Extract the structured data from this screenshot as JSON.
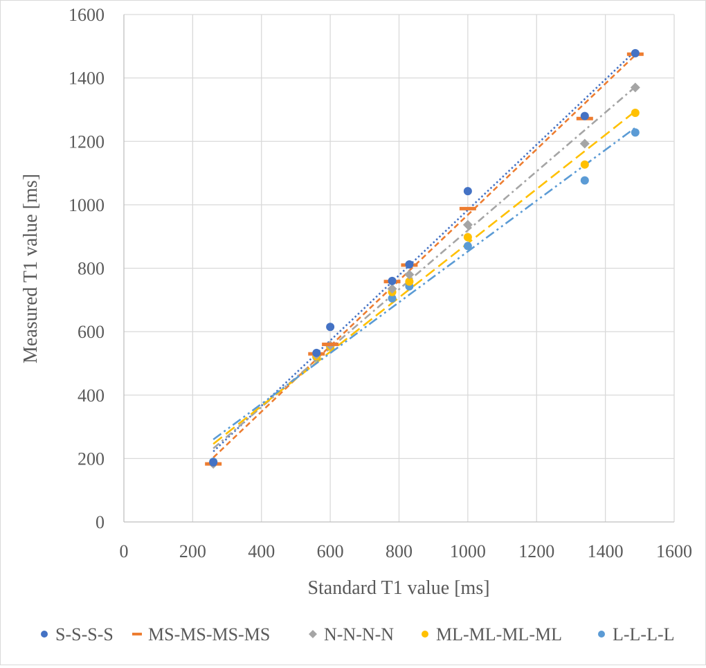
{
  "chart_data": {
    "type": "scatter",
    "title": "",
    "xlabel": "Standard T1 value [ms]",
    "ylabel": "Measured T1 value [ms]",
    "xlim": [
      0,
      1600
    ],
    "ylim": [
      0,
      1600
    ],
    "xticks": [
      0,
      200,
      400,
      600,
      800,
      1000,
      1200,
      1400,
      1600
    ],
    "yticks": [
      0,
      200,
      400,
      600,
      800,
      1000,
      1200,
      1400,
      1600
    ],
    "grid": true,
    "legend_position": "bottom",
    "x": [
      260,
      560,
      600,
      780,
      830,
      1000,
      1340,
      1487
    ],
    "series": [
      {
        "name": "S-S-S-S",
        "marker": "circle",
        "color": "#4472C4",
        "trendline_dash": "dotted",
        "values": [
          188,
          533,
          615,
          760,
          812,
          1043,
          1280,
          1478
        ],
        "trend": [
          [
            260,
            222
          ],
          [
            1487,
            1485
          ]
        ]
      },
      {
        "name": "MS-MS-MS-MS",
        "marker": "dash",
        "color": "#ED7D31",
        "trendline_dash": "dashed",
        "values": [
          183,
          530,
          560,
          758,
          810,
          988,
          1272,
          1475
        ],
        "trend": [
          [
            260,
            203
          ],
          [
            1487,
            1472
          ]
        ]
      },
      {
        "name": "N-N-N-N",
        "marker": "diamond",
        "color": "#A5A5A5",
        "trendline_dash": "dashdot",
        "values": [
          183,
          528,
          557,
          735,
          780,
          937,
          1193,
          1370
        ],
        "trend": [
          [
            260,
            232
          ],
          [
            1487,
            1372
          ]
        ]
      },
      {
        "name": "ML-ML-ML-ML",
        "marker": "circle",
        "color": "#FFC000",
        "trendline_dash": "longdash",
        "values": [
          186,
          522,
          553,
          725,
          758,
          898,
          1127,
          1290
        ],
        "trend": [
          [
            260,
            246
          ],
          [
            1487,
            1295
          ]
        ]
      },
      {
        "name": "L-L-L-L",
        "marker": "circle",
        "color": "#5B9BD5",
        "trendline_dash": "dashdotdot",
        "values": [
          190,
          520,
          553,
          705,
          743,
          870,
          1077,
          1228
        ],
        "trend": [
          [
            260,
            260
          ],
          [
            1487,
            1243
          ]
        ]
      }
    ]
  }
}
